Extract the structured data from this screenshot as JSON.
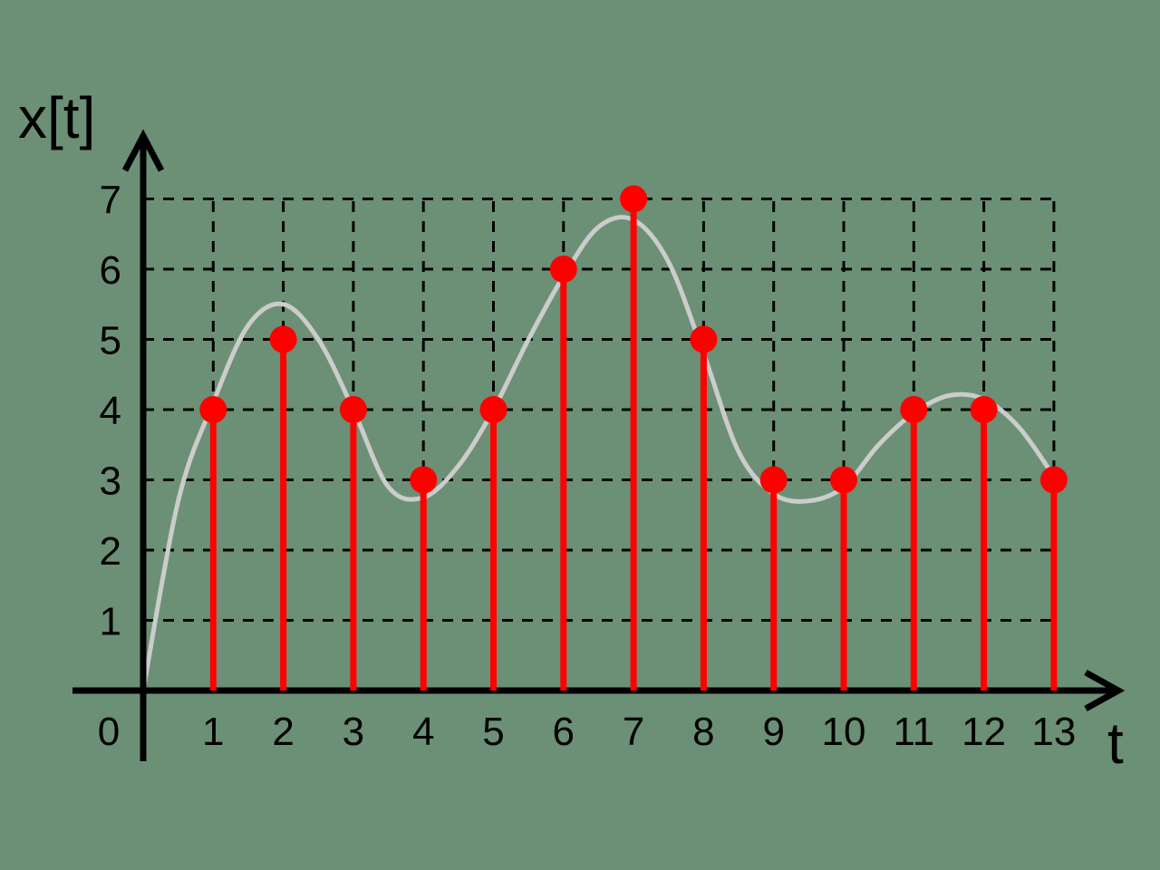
{
  "background_color": "#6b9076",
  "chart_data": {
    "type": "stem",
    "title": "",
    "xlabel": "t",
    "ylabel": "x[t]",
    "origin_label": "0",
    "x": [
      1,
      2,
      3,
      4,
      5,
      6,
      7,
      8,
      9,
      10,
      11,
      12,
      13
    ],
    "values": [
      4,
      5,
      4,
      3,
      4,
      6,
      7,
      5,
      3,
      3,
      4,
      4,
      3
    ],
    "x_ticks": [
      "1",
      "2",
      "3",
      "4",
      "5",
      "6",
      "7",
      "8",
      "9",
      "10",
      "11",
      "12",
      "13"
    ],
    "y_ticks": [
      "1",
      "2",
      "3",
      "4",
      "5",
      "6",
      "7"
    ],
    "xlim": [
      0,
      13
    ],
    "ylim": [
      0,
      7
    ],
    "grid": "dashed",
    "continuous_signal": {
      "color": "#cccccc",
      "x": [
        0,
        0.5,
        1,
        1.5,
        2,
        2.5,
        3,
        3.5,
        4,
        4.5,
        5,
        5.5,
        6,
        6.5,
        7,
        7.5,
        8,
        8.5,
        9,
        9.5,
        10,
        10.5,
        11,
        11.5,
        12,
        12.5,
        13
      ],
      "y": [
        0,
        2.7,
        4.1,
        5.2,
        5.5,
        5.0,
        4.0,
        2.9,
        2.75,
        3.2,
        4.0,
        5.0,
        5.9,
        6.6,
        6.7,
        6.1,
        4.8,
        3.4,
        2.8,
        2.7,
        2.9,
        3.5,
        3.95,
        4.2,
        4.15,
        3.75,
        3.05
      ]
    },
    "stem_color": "#ff0000",
    "axis_color": "#000000"
  }
}
